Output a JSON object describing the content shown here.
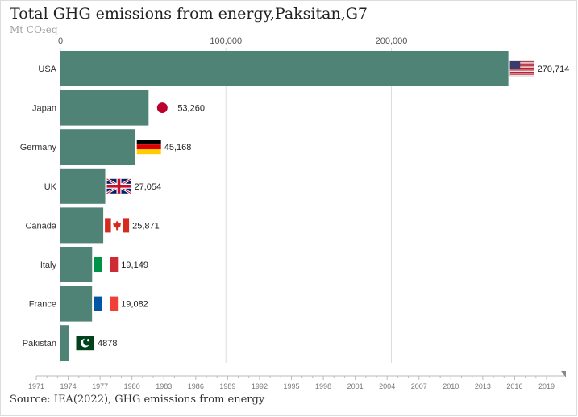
{
  "title": "Total GHG emissions from energy,Paksitan,G7",
  "subtitle": "Mt CO₂eq",
  "source": "Source: IEA(2022), GHG emissions from energy",
  "colors": {
    "bar": "#4f8376",
    "grid": "#dddddd",
    "axis": "#bbbbbb"
  },
  "chart_data": {
    "type": "bar",
    "orientation": "horizontal",
    "categories": [
      "USA",
      "Japan",
      "Germany",
      "UK",
      "Canada",
      "Italy",
      "France",
      "Pakistan"
    ],
    "values": [
      270714,
      53260,
      45168,
      27054,
      25871,
      19149,
      19082,
      4878
    ],
    "value_labels": [
      "270,714",
      "53,260",
      "45,168",
      "27,054",
      "25,871",
      "19,149",
      "19,082",
      "4878"
    ],
    "flags": [
      "us-flag-icon",
      "japan-flag-icon",
      "germany-flag-icon",
      "uk-flag-icon",
      "canada-flag-icon",
      "italy-flag-icon",
      "france-flag-icon",
      "pakistan-flag-icon"
    ],
    "xlim": [
      0,
      300000
    ],
    "xticks": [
      0,
      100000,
      200000
    ],
    "xtick_labels": [
      "0",
      "100,000",
      "200,000"
    ],
    "grid": true,
    "timeline": {
      "years": [
        "1971",
        "1974",
        "1977",
        "1980",
        "1983",
        "1986",
        "1989",
        "1992",
        "1995",
        "1998",
        "2001",
        "2004",
        "2007",
        "2010",
        "2013",
        "2016",
        "2019"
      ],
      "current": "2019"
    }
  }
}
